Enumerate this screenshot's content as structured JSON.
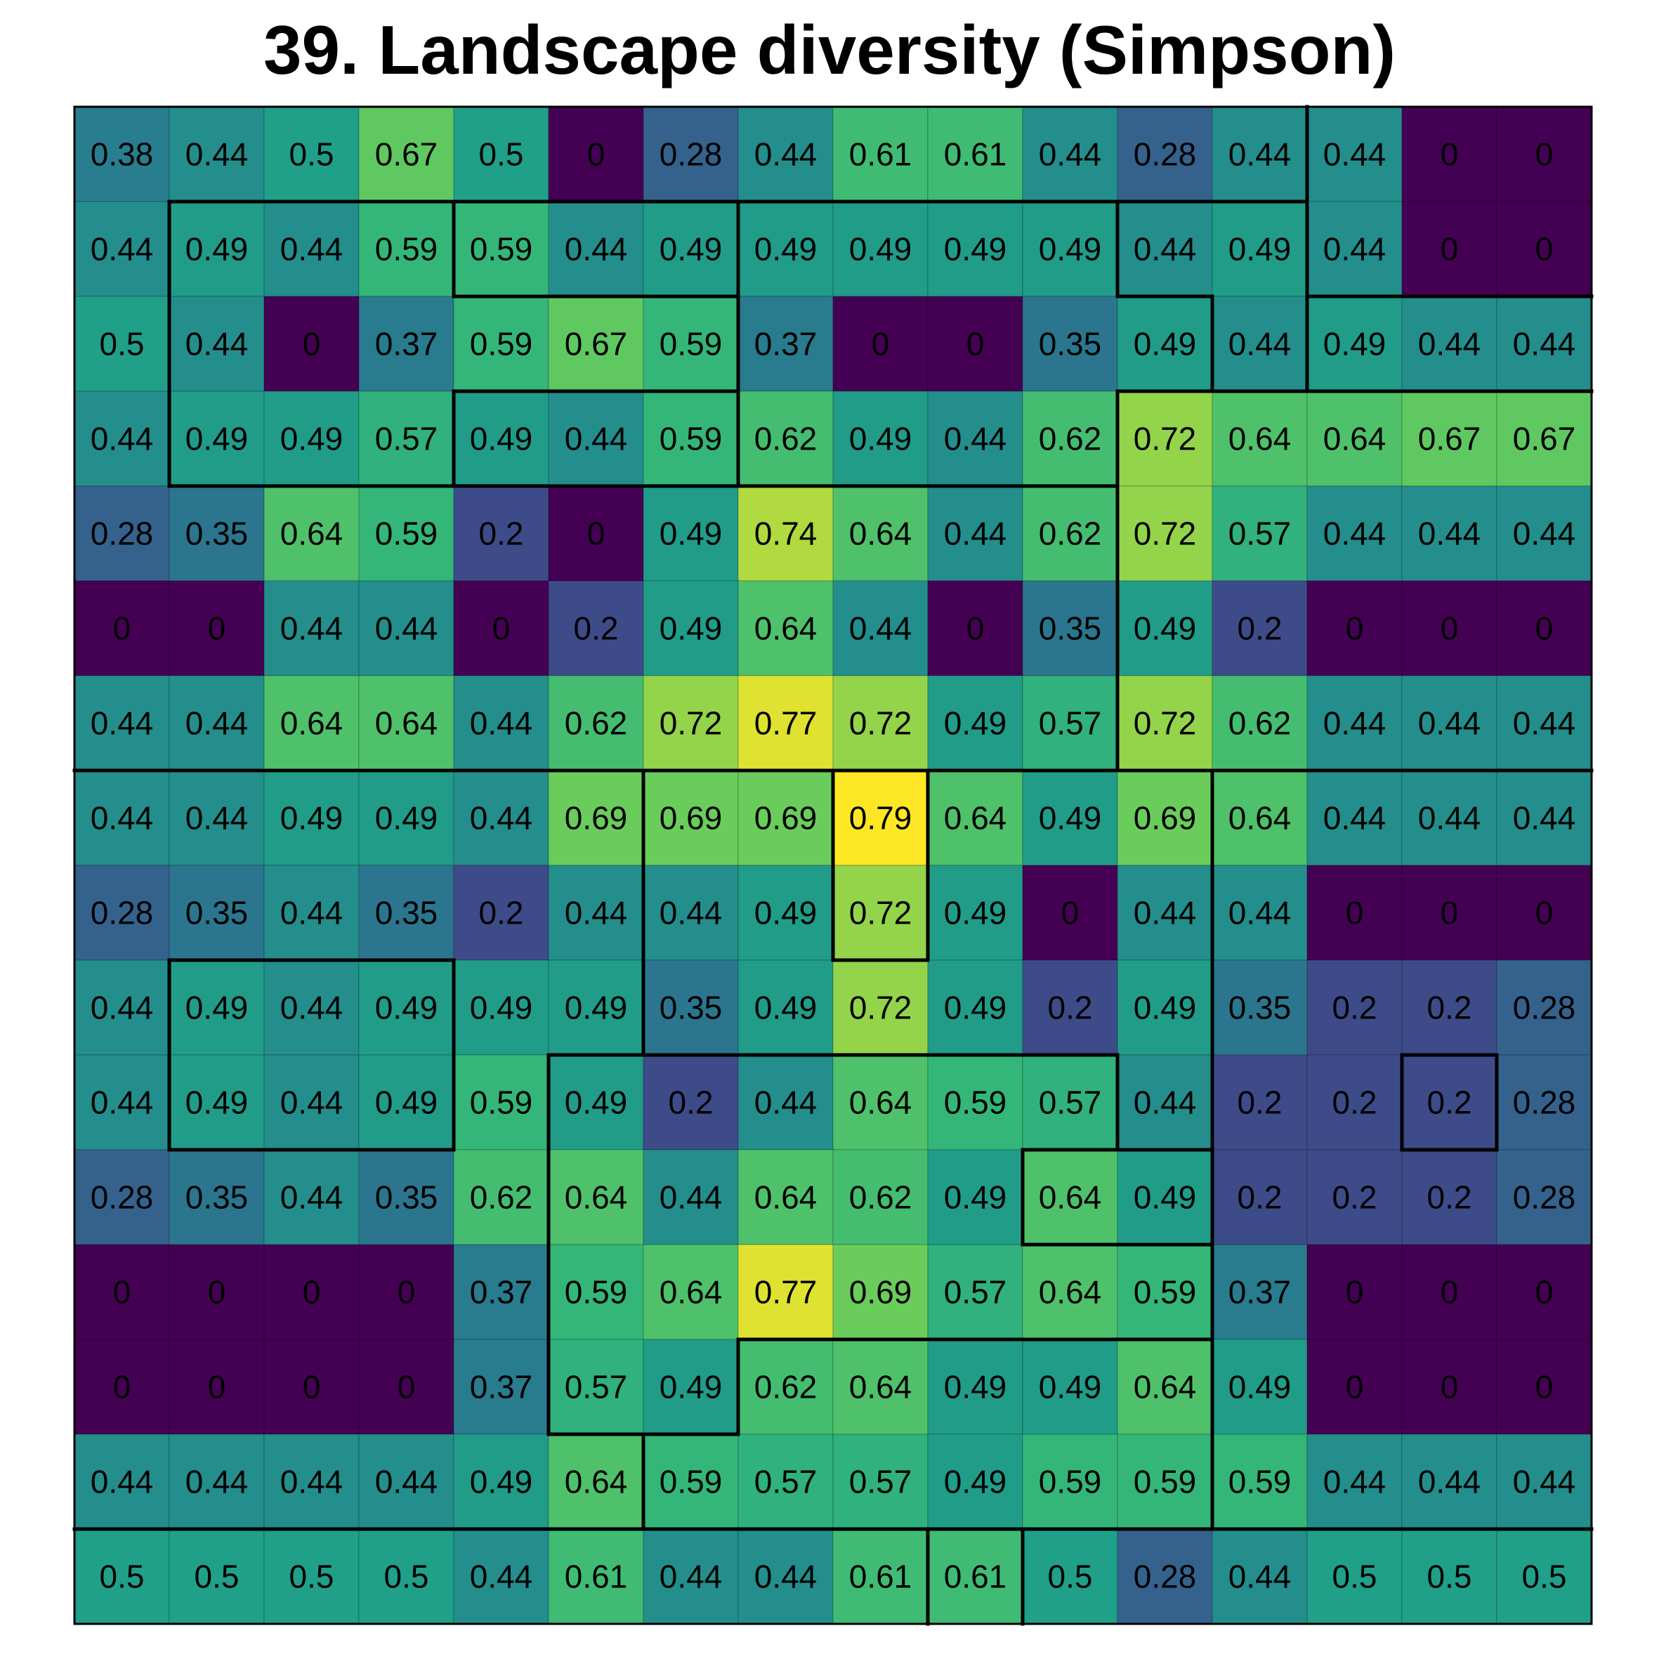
{
  "chart_data": {
    "type": "heatmap",
    "title": "39. Landscape diversity (Simpson)",
    "colormap": "viridis",
    "value_range": [
      0,
      0.79
    ],
    "grid": true,
    "values": [
      [
        0.38,
        0.44,
        0.5,
        0.67,
        0.5,
        0,
        0.28,
        0.44,
        0.61,
        0.61,
        0.44,
        0.28,
        0.44,
        0.44,
        0,
        0
      ],
      [
        0.44,
        0.49,
        0.44,
        0.59,
        0.59,
        0.44,
        0.49,
        0.49,
        0.49,
        0.49,
        0.49,
        0.44,
        0.49,
        0.44,
        0,
        0
      ],
      [
        0.5,
        0.44,
        0,
        0.37,
        0.59,
        0.67,
        0.59,
        0.37,
        0,
        0,
        0.35,
        0.49,
        0.44,
        0.49,
        0.44,
        0.44
      ],
      [
        0.44,
        0.49,
        0.49,
        0.57,
        0.49,
        0.44,
        0.59,
        0.62,
        0.49,
        0.44,
        0.62,
        0.72,
        0.64,
        0.64,
        0.67,
        0.67
      ],
      [
        0.28,
        0.35,
        0.64,
        0.59,
        0.2,
        0,
        0.49,
        0.74,
        0.64,
        0.44,
        0.62,
        0.72,
        0.57,
        0.44,
        0.44,
        0.44
      ],
      [
        0,
        0,
        0.44,
        0.44,
        0,
        0.2,
        0.49,
        0.64,
        0.44,
        0,
        0.35,
        0.49,
        0.2,
        0,
        0,
        0
      ],
      [
        0.44,
        0.44,
        0.64,
        0.64,
        0.44,
        0.62,
        0.72,
        0.77,
        0.72,
        0.49,
        0.57,
        0.72,
        0.62,
        0.44,
        0.44,
        0.44
      ],
      [
        0.44,
        0.44,
        0.49,
        0.49,
        0.44,
        0.69,
        0.69,
        0.69,
        0.79,
        0.64,
        0.49,
        0.69,
        0.64,
        0.44,
        0.44,
        0.44
      ],
      [
        0.28,
        0.35,
        0.44,
        0.35,
        0.2,
        0.44,
        0.44,
        0.49,
        0.72,
        0.49,
        0,
        0.44,
        0.44,
        0,
        0,
        0
      ],
      [
        0.44,
        0.49,
        0.44,
        0.49,
        0.49,
        0.49,
        0.35,
        0.49,
        0.72,
        0.49,
        0.2,
        0.49,
        0.35,
        0.2,
        0.2,
        0.28
      ],
      [
        0.44,
        0.49,
        0.44,
        0.49,
        0.59,
        0.49,
        0.2,
        0.44,
        0.64,
        0.59,
        0.57,
        0.44,
        0.2,
        0.2,
        0.2,
        0.28
      ],
      [
        0.28,
        0.35,
        0.44,
        0.35,
        0.62,
        0.64,
        0.44,
        0.64,
        0.62,
        0.49,
        0.64,
        0.49,
        0.2,
        0.2,
        0.2,
        0.28
      ],
      [
        0,
        0,
        0,
        0,
        0.37,
        0.59,
        0.64,
        0.77,
        0.69,
        0.57,
        0.64,
        0.59,
        0.37,
        0,
        0,
        0
      ],
      [
        0,
        0,
        0,
        0,
        0.37,
        0.57,
        0.49,
        0.62,
        0.64,
        0.49,
        0.49,
        0.64,
        0.49,
        0,
        0,
        0
      ],
      [
        0.44,
        0.44,
        0.44,
        0.44,
        0.49,
        0.64,
        0.59,
        0.57,
        0.57,
        0.49,
        0.59,
        0.59,
        0.59,
        0.44,
        0.44,
        0.44
      ],
      [
        0.5,
        0.5,
        0.5,
        0.5,
        0.44,
        0.61,
        0.44,
        0.44,
        0.61,
        0.61,
        0.5,
        0.28,
        0.44,
        0.5,
        0.5,
        0.5
      ]
    ],
    "regions": [
      [
        0,
        0,
        0,
        0,
        0,
        0,
        0,
        0,
        0,
        0,
        0,
        0,
        0,
        1,
        1,
        1
      ],
      [
        0,
        2,
        2,
        2,
        3,
        3,
        3,
        4,
        4,
        4,
        4,
        5,
        5,
        1,
        1,
        1
      ],
      [
        0,
        2,
        2,
        2,
        2,
        2,
        2,
        4,
        4,
        4,
        4,
        4,
        5,
        6,
        6,
        6
      ],
      [
        0,
        2,
        2,
        2,
        7,
        7,
        7,
        4,
        4,
        4,
        4,
        8,
        8,
        8,
        8,
        8
      ],
      [
        0,
        0,
        0,
        0,
        0,
        0,
        0,
        0,
        0,
        0,
        0,
        8,
        8,
        8,
        8,
        8
      ],
      [
        0,
        0,
        0,
        0,
        0,
        0,
        0,
        0,
        0,
        0,
        0,
        8,
        8,
        8,
        8,
        8
      ],
      [
        0,
        0,
        0,
        0,
        0,
        0,
        0,
        0,
        0,
        0,
        0,
        8,
        8,
        8,
        8,
        8
      ],
      [
        9,
        9,
        9,
        9,
        9,
        9,
        10,
        10,
        11,
        10,
        10,
        10,
        12,
        12,
        12,
        12
      ],
      [
        9,
        9,
        9,
        9,
        9,
        9,
        10,
        10,
        11,
        10,
        10,
        10,
        12,
        12,
        12,
        12
      ],
      [
        9,
        13,
        13,
        13,
        9,
        9,
        10,
        10,
        10,
        10,
        10,
        10,
        12,
        12,
        12,
        12
      ],
      [
        9,
        13,
        13,
        13,
        9,
        14,
        14,
        14,
        14,
        14,
        14,
        10,
        12,
        12,
        16,
        12
      ],
      [
        9,
        9,
        9,
        9,
        9,
        14,
        14,
        14,
        14,
        14,
        15,
        15,
        12,
        12,
        12,
        12
      ],
      [
        9,
        9,
        9,
        9,
        9,
        14,
        14,
        14,
        14,
        14,
        14,
        14,
        12,
        12,
        12,
        12
      ],
      [
        9,
        9,
        9,
        9,
        9,
        14,
        14,
        17,
        17,
        17,
        17,
        17,
        12,
        12,
        12,
        12
      ],
      [
        9,
        9,
        9,
        9,
        9,
        9,
        17,
        17,
        17,
        17,
        17,
        17,
        12,
        12,
        12,
        12
      ],
      [
        18,
        18,
        18,
        18,
        18,
        18,
        18,
        18,
        18,
        19,
        18,
        18,
        18,
        18,
        18,
        18
      ]
    ]
  }
}
